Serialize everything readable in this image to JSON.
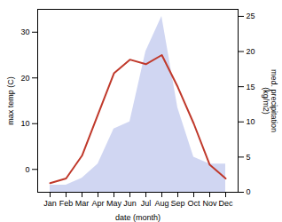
{
  "chart_data": {
    "type": "line",
    "xlabel": "date (month)",
    "ylabel": "max temp (C)",
    "y2label": "med. precipitation\n(kg/m2)",
    "categories": [
      "Jan",
      "Feb",
      "Mar",
      "Apr",
      "May",
      "Jun",
      "Jul",
      "Aug",
      "Sep",
      "Oct",
      "Nov",
      "Dec"
    ],
    "series": [
      {
        "type": "area",
        "axis": "y2",
        "color": "#aab4e8",
        "values": [
          1,
          1,
          2,
          4,
          9,
          10,
          20,
          25,
          12,
          5,
          4,
          4
        ]
      },
      {
        "type": "line",
        "color": "#c0392b",
        "values": [
          -3,
          -2,
          3,
          12,
          21,
          24,
          23,
          25,
          18,
          10,
          1,
          -2
        ]
      }
    ],
    "ylim": [
      -5,
      35
    ],
    "yticks": [
      0,
      10,
      20,
      30
    ],
    "y2lim": [
      0,
      26
    ],
    "y2ticks": [
      0,
      5,
      10,
      15,
      20,
      25
    ],
    "grid": false
  }
}
